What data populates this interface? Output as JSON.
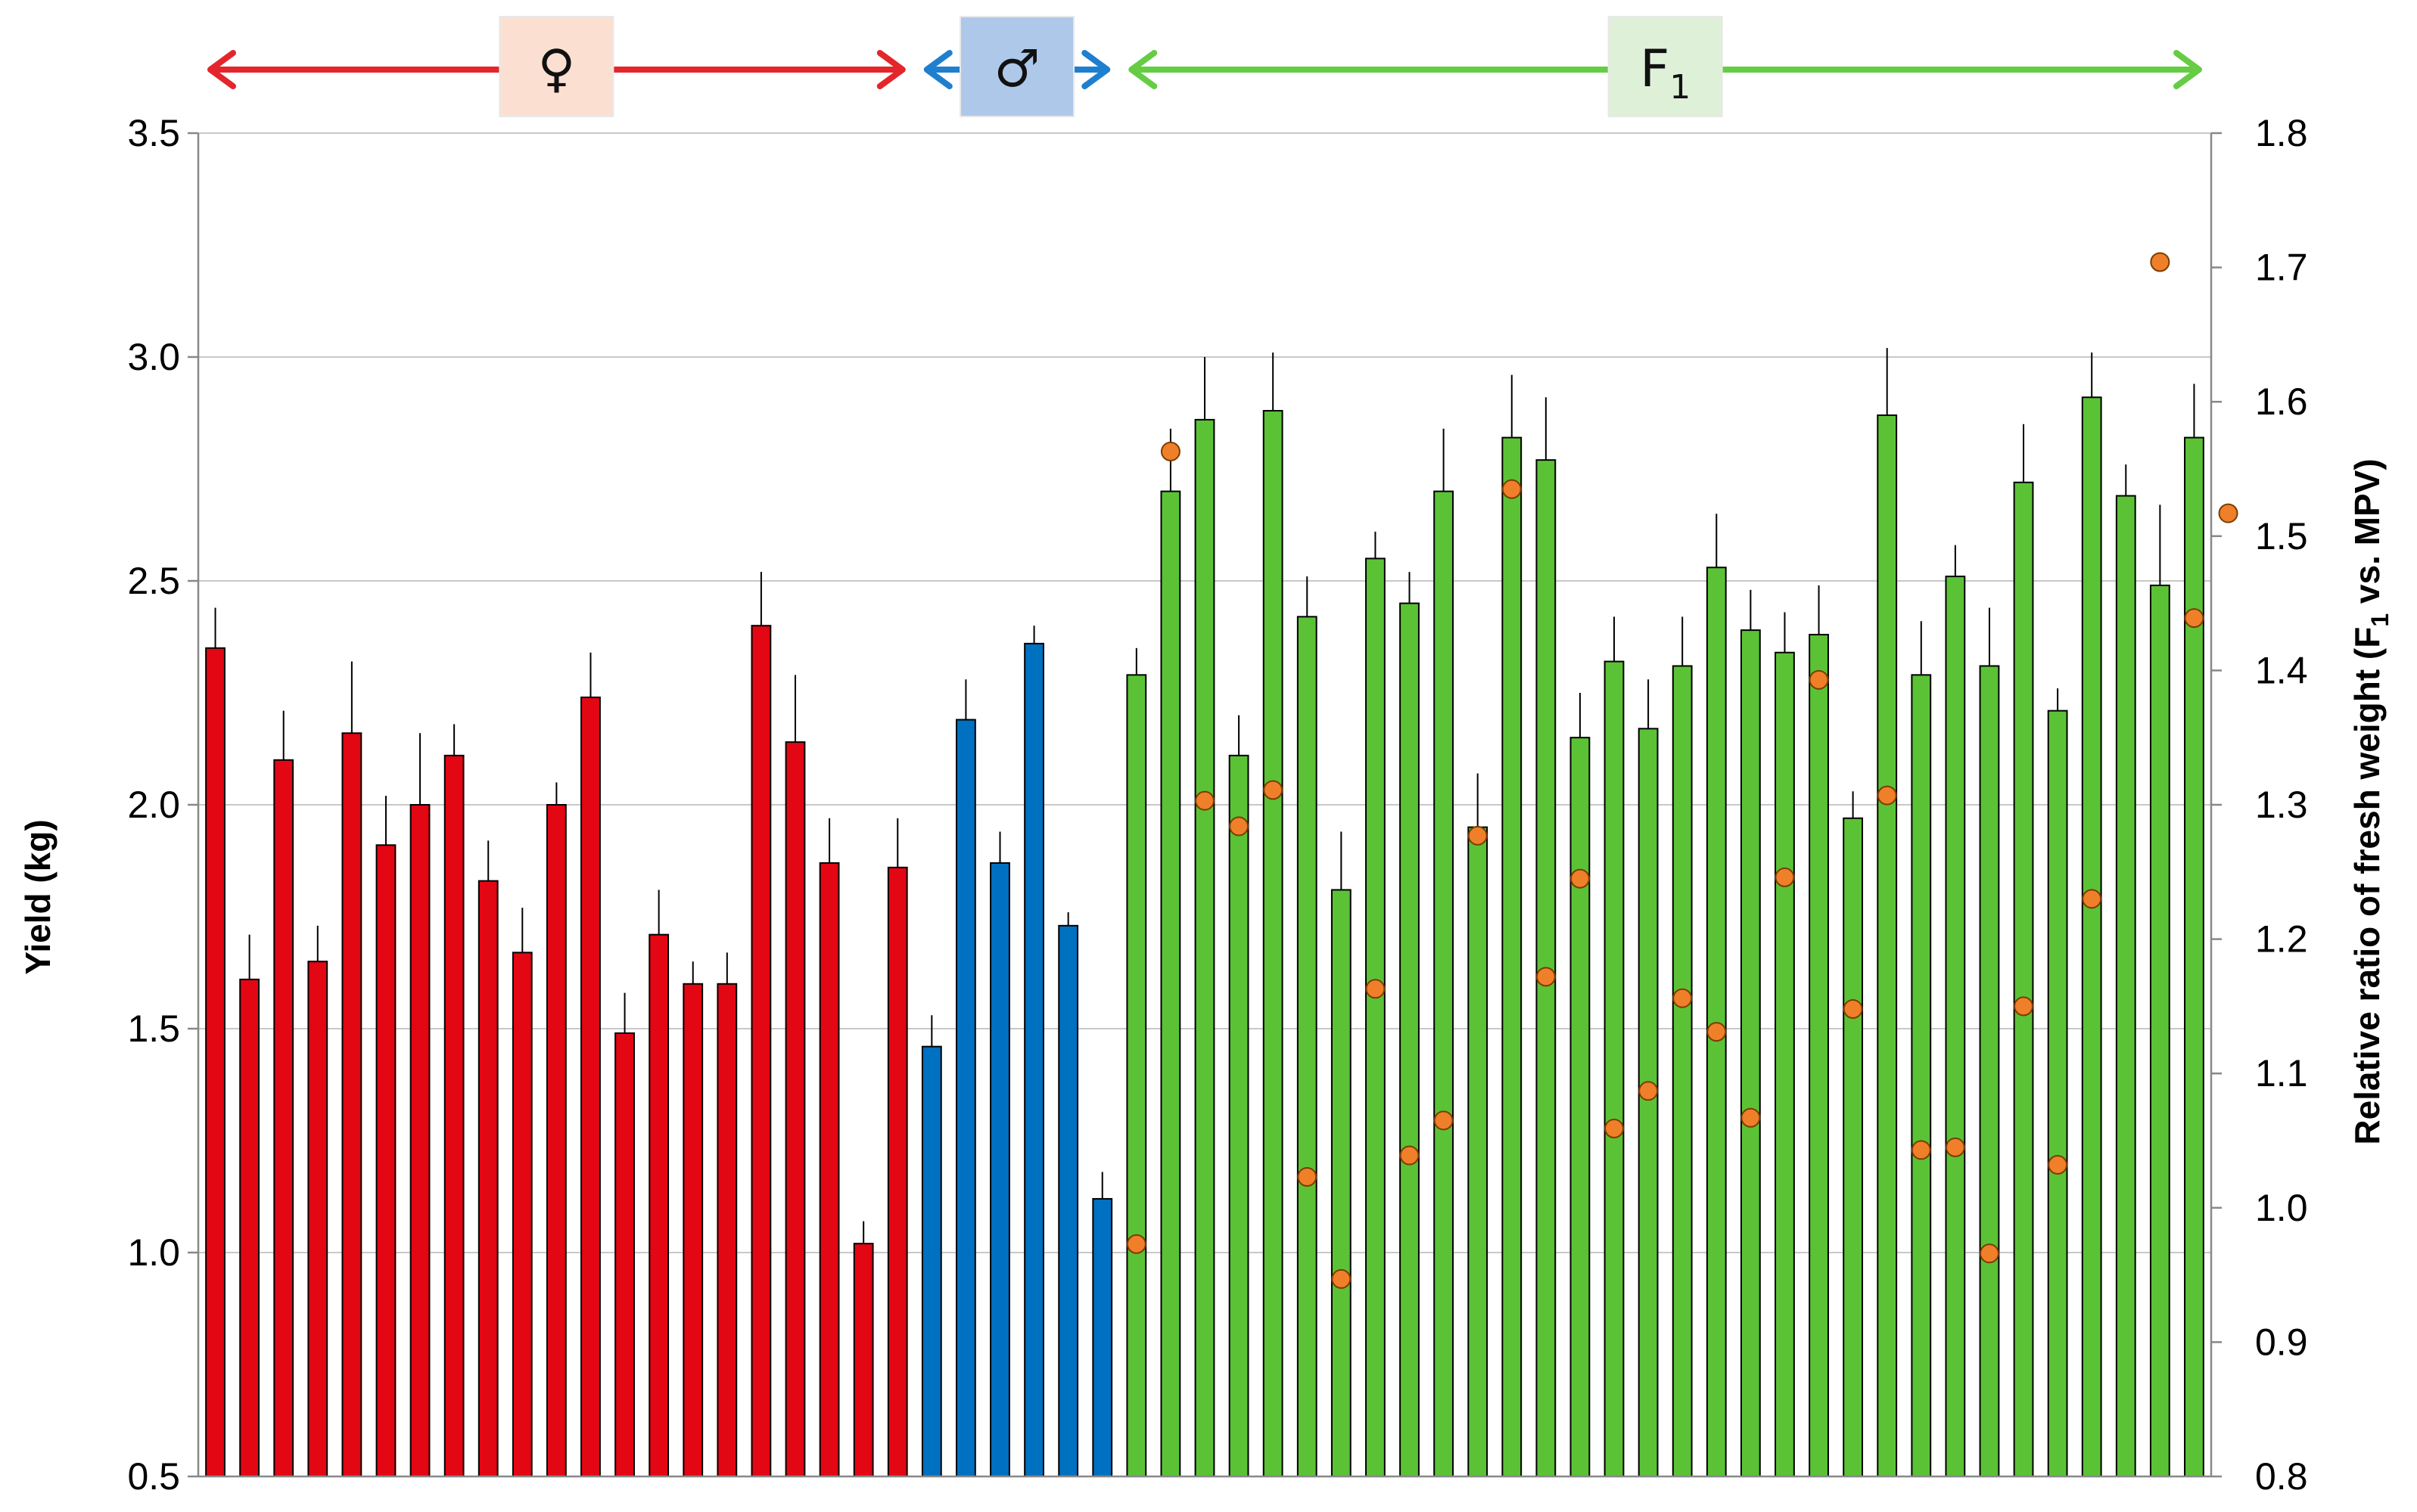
{
  "chart_data": {
    "type": "bar",
    "title": "",
    "ylabel": "Yield (kg)",
    "y2label_prefix": "Relative ratio of fresh weight (",
    "y2label_f": "F",
    "y2label_sub": "1",
    "y2label_suffix": " vs. MPV)",
    "ylim": [
      0.5,
      3.5
    ],
    "y2lim": [
      0.8,
      1.8
    ],
    "yticks": [
      "0.5",
      "1.0",
      "1.5",
      "2.0",
      "2.5",
      "3.0",
      "3.5"
    ],
    "y2ticks": [
      "0.8",
      "0.9",
      "1.0",
      "1.1",
      "1.2",
      "1.3",
      "1.4",
      "1.5",
      "1.6",
      "1.7",
      "1.8"
    ],
    "grid": true,
    "groups": [
      {
        "label": "♀",
        "sub": "",
        "color": "#e30613",
        "box_color": "#fbe0d2",
        "arrow_color": "#e3262b",
        "count": 21
      },
      {
        "label": "♂",
        "sub": "",
        "color": "#0070c0",
        "box_color": "#aec8ea",
        "arrow_color": "#1f7fcf",
        "count": 6
      },
      {
        "label": "F",
        "sub": "1",
        "color": "#5bc236",
        "box_color": "#dff0d8",
        "arrow_color": "#66cc44",
        "count": 32
      }
    ],
    "series": [
      {
        "name": "Yield",
        "axis": "left",
        "values": [
          2.35,
          1.61,
          2.1,
          1.65,
          2.16,
          1.91,
          2.0,
          2.11,
          1.83,
          1.67,
          2.0,
          2.24,
          1.49,
          1.71,
          1.6,
          1.6,
          2.4,
          2.14,
          1.87,
          1.02,
          1.86,
          1.46,
          2.19,
          1.87,
          2.36,
          1.73,
          1.12,
          2.29,
          2.7,
          2.86,
          2.11,
          2.88,
          2.42,
          1.81,
          2.55,
          2.45,
          2.7,
          1.95,
          2.82,
          2.77,
          2.15,
          2.32,
          2.17,
          2.31,
          2.53,
          2.39,
          2.34,
          2.38,
          1.97,
          2.87,
          2.29,
          2.51,
          2.31,
          2.72,
          2.21,
          2.91,
          2.69,
          2.49,
          2.82
        ],
        "errors": [
          0.09,
          0.1,
          0.11,
          0.08,
          0.16,
          0.11,
          0.16,
          0.07,
          0.09,
          0.1,
          0.05,
          0.1,
          0.09,
          0.1,
          0.05,
          0.07,
          0.12,
          0.15,
          0.1,
          0.05,
          0.11,
          0.07,
          0.09,
          0.07,
          0.04,
          0.03,
          0.06,
          0.06,
          0.14,
          0.14,
          0.09,
          0.13,
          0.09,
          0.13,
          0.06,
          0.07,
          0.14,
          0.12,
          0.14,
          0.14,
          0.1,
          0.1,
          0.11,
          0.11,
          0.12,
          0.09,
          0.09,
          0.11,
          0.06,
          0.15,
          0.12,
          0.07,
          0.13,
          0.13,
          0.05,
          0.1,
          0.07,
          0.18,
          0.12
        ]
      },
      {
        "name": "Relative ratio",
        "axis": "right",
        "color": "#f07f2a",
        "start_index": 27,
        "values": [
          0.973,
          1.563,
          1.303,
          1.284,
          1.311,
          1.023,
          0.947,
          1.163,
          1.039,
          1.065,
          1.277,
          1.535,
          1.172,
          1.245,
          1.059,
          1.087,
          1.156,
          1.131,
          1.067,
          1.246,
          1.393,
          1.148,
          1.307,
          1.043,
          1.045,
          0.966,
          1.15,
          1.032,
          1.23,
          1.704,
          1.439,
          1.517
        ],
        "value_index_offsets": [
          0,
          1,
          2,
          3,
          4,
          5,
          6,
          7,
          8,
          9,
          10,
          11,
          12,
          13,
          14,
          15,
          16,
          17,
          18,
          19,
          20,
          21,
          22,
          23,
          24,
          25,
          26,
          27,
          28,
          30,
          31,
          32
        ]
      }
    ]
  }
}
